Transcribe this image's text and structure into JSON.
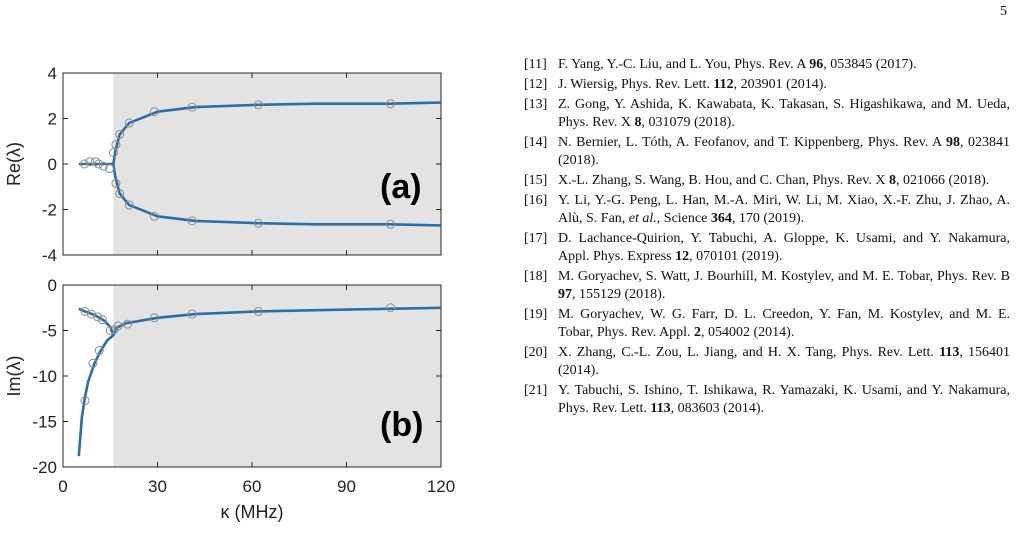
{
  "page_number": "5",
  "figure": {
    "panel_a": {
      "label": "(a)",
      "ylabel": "Re(λ)",
      "yticks": [
        "4",
        "2",
        "0",
        "-2",
        "-4"
      ],
      "ylim": [
        -4,
        4
      ]
    },
    "panel_b": {
      "label": "(b)",
      "ylabel": "Im(λ)",
      "yticks": [
        "0",
        "-5",
        "-10",
        "-15",
        "-20"
      ],
      "ylim": [
        -20,
        0
      ]
    },
    "xlabel": "κ (MHz)",
    "xticks": [
      "0",
      "30",
      "60",
      "90",
      "120"
    ],
    "xlim": [
      0,
      120
    ],
    "shade_start": 16,
    "line_color": "#2a6ea7",
    "marker_color": "#8c8c8c",
    "shade_color": "#e3e3e3"
  },
  "chart_data": [
    {
      "type": "line",
      "ylabel": "Re(λ)",
      "xlabel": "",
      "ylim": [
        -4,
        4
      ],
      "xlim": [
        0,
        120
      ],
      "series": [
        {
          "values": [
            [
              5,
              0
            ],
            [
              8,
              0
            ],
            [
              11,
              0
            ],
            [
              13,
              0
            ],
            [
              15,
              0
            ],
            [
              16,
              0
            ],
            [
              16.5,
              0.5
            ],
            [
              18,
              1.3
            ],
            [
              21,
              1.8
            ],
            [
              30,
              2.3
            ],
            [
              42,
              2.5
            ],
            [
              62,
              2.6
            ],
            [
              80,
              2.65
            ],
            [
              104,
              2.65
            ],
            [
              120,
              2.7
            ]
          ]
        },
        {
          "values": [
            [
              16,
              0
            ],
            [
              16.5,
              -0.5
            ],
            [
              18,
              -1.3
            ],
            [
              21,
              -1.8
            ],
            [
              30,
              -2.3
            ],
            [
              42,
              -2.5
            ],
            [
              62,
              -2.6
            ],
            [
              80,
              -2.65
            ],
            [
              104,
              -2.65
            ],
            [
              120,
              -2.7
            ]
          ]
        }
      ],
      "markers": [
        [
          6.8,
          0
        ],
        [
          8.5,
          0.1
        ],
        [
          10.3,
          0.1
        ],
        [
          11.3,
          0
        ],
        [
          12.8,
          -0.1
        ],
        [
          14.8,
          -0.2
        ],
        [
          16,
          0.5
        ],
        [
          16.8,
          0.85
        ],
        [
          18,
          1.3
        ],
        [
          21,
          1.8
        ],
        [
          29,
          2.3
        ],
        [
          41,
          2.5
        ],
        [
          62,
          2.6
        ],
        [
          104,
          2.65
        ],
        [
          16.8,
          -0.85
        ],
        [
          18,
          -1.3
        ],
        [
          21,
          -1.8
        ],
        [
          29,
          -2.3
        ],
        [
          41,
          -2.5
        ],
        [
          62,
          -2.6
        ],
        [
          104,
          -2.65
        ]
      ]
    },
    {
      "type": "line",
      "ylabel": "Im(λ)",
      "xlabel": "κ (MHz)",
      "ylim": [
        -20,
        0
      ],
      "xlim": [
        0,
        120
      ],
      "series": [
        {
          "values": [
            [
              5,
              -2.6
            ],
            [
              7,
              -2.9
            ],
            [
              10,
              -3.3
            ],
            [
              13,
              -3.9
            ],
            [
              15,
              -4.6
            ],
            [
              16,
              -5.5
            ],
            [
              17,
              -4.7
            ],
            [
              20,
              -4.2
            ],
            [
              30,
              -3.6
            ],
            [
              42,
              -3.2
            ],
            [
              62,
              -2.9
            ],
            [
              90,
              -2.7
            ],
            [
              120,
              -2.5
            ]
          ]
        },
        {
          "values": [
            [
              5,
              -18.8
            ],
            [
              6,
              -14.5
            ],
            [
              7,
              -12.3
            ],
            [
              8,
              -10.6
            ],
            [
              10,
              -8.6
            ],
            [
              12,
              -7.2
            ],
            [
              14,
              -6.1
            ],
            [
              16,
              -5.5
            ]
          ]
        }
      ],
      "markers": [
        [
          7,
          -2.9
        ],
        [
          9,
          -3.2
        ],
        [
          11,
          -3.5
        ],
        [
          12.5,
          -3.8
        ],
        [
          15,
          -5
        ],
        [
          16.2,
          -4.9
        ],
        [
          17.5,
          -4.5
        ],
        [
          20.5,
          -4.3
        ],
        [
          29,
          -3.6
        ],
        [
          41,
          -3.2
        ],
        [
          62,
          -2.9
        ],
        [
          104,
          -2.5
        ],
        [
          7,
          -12.7
        ],
        [
          9.5,
          -8.6
        ],
        [
          11.5,
          -7.2
        ]
      ]
    }
  ],
  "references": [
    {
      "num": "[11]",
      "text": "F. Yang, Y.-C. Liu,  and L. You, Phys. Rev. A <b>96</b>, 053845 (2017)."
    },
    {
      "num": "[12]",
      "text": "J. Wiersig, Phys. Rev. Lett. <b>112</b>, 203901 (2014)."
    },
    {
      "num": "[13]",
      "text": "Z. Gong, Y. Ashida, K. Kawabata, K. Takasan, S. Higashikawa,  and M. Ueda, Phys. Rev. X <b>8</b>, 031079 (2018)."
    },
    {
      "num": "[14]",
      "text": "N. Bernier, L. Tóth, A. Feofanov,  and T. Kippenberg, Phys. Rev. A <b>98</b>, 023841 (2018)."
    },
    {
      "num": "[15]",
      "text": "X.-L. Zhang, S. Wang, B. Hou,  and C. Chan, Phys. Rev. X <b>8</b>, 021066 (2018)."
    },
    {
      "num": "[16]",
      "text": "Y. Li, Y.-G. Peng, L. Han, M.-A. Miri, W. Li, M. Xiao, X.-F. Zhu, J. Zhao, A. Alù, S. Fan, <i>et al.</i>, Science <b>364</b>, 170 (2019)."
    },
    {
      "num": "[17]",
      "text": "D. Lachance-Quirion, Y. Tabuchi, A. Gloppe, K. Usami,  and Y. Nakamura, Appl. Phys. Express <b>12</b>, 070101 (2019)."
    },
    {
      "num": "[18]",
      "text": "M. Goryachev, S. Watt, J. Bourhill, M. Kostylev,  and M. E. Tobar, Phys. Rev. B <b>97</b>, 155129 (2018)."
    },
    {
      "num": "[19]",
      "text": "M. Goryachev, W. G. Farr, D. L. Creedon, Y. Fan, M. Kostylev,  and M. E. Tobar, Phys. Rev. Appl. <b>2</b>, 054002 (2014)."
    },
    {
      "num": "[20]",
      "text": "X. Zhang, C.-L. Zou, L. Jiang,  and H. X. Tang, Phys. Rev. Lett. <b>113</b>, 156401 (2014)."
    },
    {
      "num": "[21]",
      "text": "Y. Tabuchi, S. Ishino, T. Ishikawa, R. Yamazaki, K. Usami,  and Y. Nakamura, Phys. Rev. Lett. <b>113</b>, 083603 (2014)."
    }
  ]
}
